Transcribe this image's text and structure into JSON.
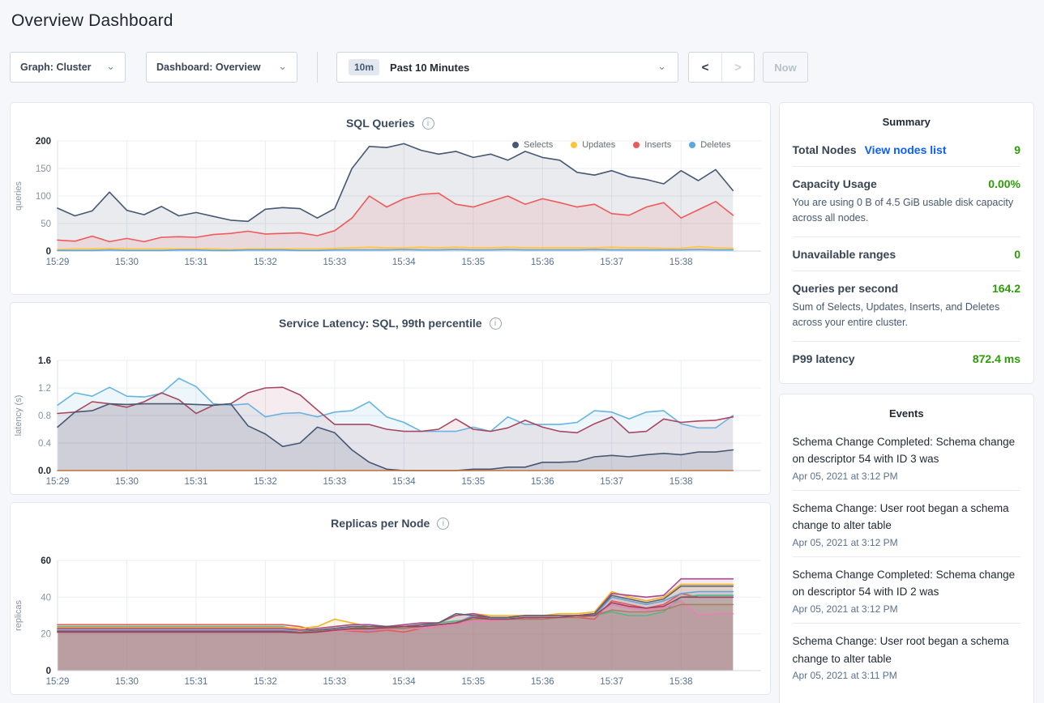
{
  "page": {
    "title": "Overview Dashboard"
  },
  "toolbar": {
    "graph_dropdown": "Graph: Cluster",
    "dashboard_dropdown": "Dashboard: Overview",
    "range_badge": "10m",
    "range_label": "Past 10 Minutes",
    "prev_label": "<",
    "next_label": ">",
    "now_label": "Now"
  },
  "colors": {
    "accent_green": "#2d9c07",
    "link_blue": "#0b5dff",
    "page_background": "#f5f7fa"
  },
  "summary": {
    "title": "Summary",
    "rows": [
      {
        "label": "Total Nodes",
        "link": "View nodes list",
        "value": "9",
        "desc": ""
      },
      {
        "label": "Capacity Usage",
        "link": "",
        "value": "0.00%",
        "desc": "You are using 0 B of 4.5 GiB usable disk capacity across all nodes."
      },
      {
        "label": "Unavailable ranges",
        "link": "",
        "value": "0",
        "desc": ""
      },
      {
        "label": "Queries per second",
        "link": "",
        "value": "164.2",
        "desc": "Sum of Selects, Updates, Inserts, and Deletes across your entire cluster."
      },
      {
        "label": "P99 latency",
        "link": "",
        "value": "872.4 ms",
        "desc": ""
      }
    ]
  },
  "events": {
    "title": "Events",
    "items": [
      {
        "message": "Schema Change Completed: Schema change on descriptor 54 with ID 3 was",
        "timestamp": "Apr 05, 2021 at 3:12 PM"
      },
      {
        "message": "Schema Change: User root began a schema change to alter table",
        "timestamp": "Apr 05, 2021 at 3:12 PM"
      },
      {
        "message": "Schema Change Completed: Schema change on descriptor 54 with ID 2 was",
        "timestamp": "Apr 05, 2021 at 3:12 PM"
      },
      {
        "message": "Schema Change: User root began a schema change to alter table",
        "timestamp": "Apr 05, 2021 at 3:11 PM"
      }
    ]
  },
  "chart_data": [
    {
      "type": "area",
      "title": "SQL Queries",
      "ylabel": "queries",
      "ylim": [
        0,
        200
      ],
      "yticks": [
        0,
        50,
        100,
        150,
        200
      ],
      "ytick_labels": [
        "0",
        "50",
        "100",
        "150",
        "200"
      ],
      "x_labels": [
        "15:29",
        "15:30",
        "15:31",
        "15:32",
        "15:33",
        "15:34",
        "15:35",
        "15:36",
        "15:37",
        "15:38"
      ],
      "legend_position": "top-right",
      "grid": true,
      "series": [
        {
          "name": "Selects",
          "color": "#475872",
          "fill_opacity": 0.12,
          "values": [
            78,
            64,
            73,
            107,
            74,
            66,
            81,
            64,
            70,
            63,
            56,
            54,
            76,
            79,
            77,
            60,
            77,
            150,
            190,
            188,
            195,
            183,
            176,
            181,
            170,
            176,
            165,
            181,
            170,
            165,
            143,
            138,
            146,
            135,
            130,
            122,
            146,
            128,
            148,
            110
          ]
        },
        {
          "name": "Updates",
          "color": "#ffc53d",
          "fill_opacity": 0.18,
          "values": [
            3,
            4,
            4,
            5,
            4,
            4,
            4,
            4,
            4,
            4,
            3,
            4,
            4,
            4,
            4,
            4,
            5,
            6,
            7,
            6,
            6,
            7,
            6,
            7,
            6,
            6,
            7,
            6,
            6,
            6,
            6,
            6,
            7,
            6,
            6,
            5,
            5,
            8,
            6,
            5
          ]
        },
        {
          "name": "Inserts",
          "color": "#ee5a5a",
          "fill_opacity": 0.12,
          "values": [
            20,
            18,
            27,
            17,
            23,
            17,
            25,
            26,
            25,
            30,
            32,
            36,
            31,
            32,
            33,
            28,
            37,
            60,
            100,
            80,
            95,
            103,
            105,
            85,
            80,
            90,
            100,
            85,
            95,
            88,
            80,
            85,
            68,
            65,
            80,
            88,
            60,
            75,
            90,
            65
          ]
        },
        {
          "name": "Deletes",
          "color": "#5ba8df",
          "fill_opacity": 0.12,
          "values": [
            1,
            1,
            1,
            2,
            1,
            1,
            1,
            2,
            2,
            1,
            1,
            2,
            2,
            2,
            1,
            1,
            2,
            2,
            2,
            2,
            3,
            2,
            2,
            3,
            2,
            2,
            3,
            2,
            2,
            2,
            2,
            3,
            2,
            2,
            2,
            2,
            2,
            3,
            2,
            2
          ]
        }
      ]
    },
    {
      "type": "area",
      "title": "Service Latency: SQL, 99th percentile",
      "ylabel": "latency (s)",
      "ylim": [
        0,
        1.6
      ],
      "yticks": [
        0,
        0.4,
        0.8,
        1.2,
        1.6
      ],
      "ytick_labels": [
        "0.0",
        "0.4",
        "0.8",
        "1.2",
        "1.6"
      ],
      "x_labels": [
        "15:29",
        "15:30",
        "15:31",
        "15:32",
        "15:33",
        "15:34",
        "15:35",
        "15:36",
        "15:37",
        "15:38"
      ],
      "legend_position": "none",
      "grid": true,
      "series": [
        {
          "name": "",
          "color": "#68b4e0",
          "fill_opacity": 0.12,
          "values": [
            0.95,
            1.13,
            1.08,
            1.21,
            1.08,
            1.07,
            1.12,
            1.34,
            1.22,
            0.97,
            0.95,
            0.97,
            0.78,
            0.83,
            0.84,
            0.78,
            0.85,
            0.87,
            1.0,
            0.78,
            0.7,
            0.57,
            0.57,
            0.57,
            0.63,
            0.57,
            0.78,
            0.67,
            0.67,
            0.67,
            0.7,
            0.87,
            0.85,
            0.75,
            0.85,
            0.87,
            0.68,
            0.62,
            0.62,
            0.8
          ]
        },
        {
          "name": "",
          "color": "#a8475f",
          "fill_opacity": 0.1,
          "values": [
            0.83,
            0.85,
            1.0,
            0.97,
            0.92,
            1.0,
            1.13,
            1.03,
            0.83,
            0.95,
            0.97,
            1.13,
            1.2,
            1.21,
            1.1,
            0.88,
            0.67,
            0.67,
            0.67,
            0.6,
            0.57,
            0.57,
            0.6,
            0.75,
            0.6,
            0.57,
            0.62,
            0.73,
            0.63,
            0.57,
            0.55,
            0.68,
            0.78,
            0.55,
            0.57,
            0.75,
            0.7,
            0.72,
            0.73,
            0.78
          ]
        },
        {
          "name": "",
          "color": "#475872",
          "fill_opacity": 0.14,
          "values": [
            0.63,
            0.85,
            0.87,
            0.97,
            0.96,
            0.97,
            0.97,
            0.97,
            0.96,
            0.95,
            0.97,
            0.65,
            0.53,
            0.35,
            0.4,
            0.63,
            0.55,
            0.3,
            0.12,
            0.02,
            0.0,
            0.0,
            0.0,
            0.0,
            0.02,
            0.02,
            0.05,
            0.05,
            0.12,
            0.12,
            0.13,
            0.2,
            0.22,
            0.2,
            0.23,
            0.25,
            0.23,
            0.27,
            0.27,
            0.3
          ]
        },
        {
          "name": "",
          "color": "#c0703c",
          "fill_opacity": 0,
          "values": [
            0,
            0,
            0,
            0,
            0,
            0,
            0,
            0,
            0,
            0,
            0,
            0,
            0,
            0,
            0,
            0,
            0,
            0,
            0,
            0,
            0,
            0,
            0,
            0,
            0,
            0,
            0,
            0,
            0,
            0,
            0,
            0,
            0,
            0,
            0,
            0,
            0,
            0,
            0,
            0
          ]
        }
      ]
    },
    {
      "type": "area",
      "title": "Replicas per Node",
      "ylabel": "replicas",
      "ylim": [
        0,
        60
      ],
      "yticks": [
        0,
        20,
        40,
        60
      ],
      "ytick_labels": [
        "0",
        "20",
        "40",
        "60"
      ],
      "x_labels": [
        "15:29",
        "15:30",
        "15:31",
        "15:32",
        "15:33",
        "15:34",
        "15:35",
        "15:36",
        "15:37",
        "15:38"
      ],
      "legend_position": "none",
      "grid": true,
      "series": [
        {
          "name": "",
          "color": "#e25b5b",
          "fill_opacity": 0.12,
          "values": [
            25,
            25,
            25,
            25,
            25,
            25,
            25,
            25,
            25,
            25,
            25,
            25,
            25,
            25,
            24,
            21.5,
            22,
            21.5,
            21,
            22,
            21,
            23,
            24,
            25,
            30,
            28,
            28,
            29,
            28,
            29,
            29,
            28,
            38,
            36,
            34,
            36,
            42,
            40,
            40,
            40
          ]
        },
        {
          "name": "",
          "color": "#4fb98a",
          "fill_opacity": 0.12,
          "values": [
            24,
            24,
            24,
            24,
            24,
            24,
            24,
            24,
            24,
            24,
            24,
            24,
            24,
            24,
            22,
            22,
            23,
            24,
            23,
            23,
            24,
            24,
            26,
            27,
            28,
            28,
            29,
            28,
            28,
            29,
            29,
            30,
            32,
            30,
            30,
            32,
            40,
            41,
            41,
            41
          ]
        },
        {
          "name": "",
          "color": "#f5b222",
          "fill_opacity": 0.12,
          "values": [
            23.5,
            23.5,
            23.5,
            23.5,
            23.5,
            23.5,
            23.5,
            23.5,
            23.5,
            23.5,
            23.5,
            23.5,
            23.5,
            23.5,
            23,
            24,
            28,
            26,
            24,
            24,
            24,
            25,
            26,
            30,
            31,
            30,
            30,
            30,
            30,
            31,
            31,
            32,
            43,
            40,
            38,
            40,
            47,
            47,
            47,
            47
          ]
        },
        {
          "name": "",
          "color": "#a84a8f",
          "fill_opacity": 0.12,
          "values": [
            23,
            23,
            23,
            23,
            23,
            23,
            23,
            23,
            23,
            23,
            23,
            23,
            23,
            23,
            22,
            23,
            24,
            25,
            25,
            24,
            25,
            26,
            26,
            30,
            31,
            29,
            29,
            30,
            30,
            30,
            30,
            31,
            42,
            41,
            40,
            41,
            50,
            50,
            50,
            50
          ]
        },
        {
          "name": "",
          "color": "#6aa0d8",
          "fill_opacity": 0.12,
          "values": [
            22.5,
            22.5,
            22.5,
            22.5,
            22.5,
            22.5,
            22.5,
            22.5,
            22.5,
            22.5,
            22.5,
            22.5,
            22.5,
            22.5,
            21,
            21,
            22,
            23,
            21.5,
            23,
            23,
            24,
            25,
            26,
            30,
            29,
            28,
            29,
            29,
            29,
            30,
            30,
            40,
            38,
            36,
            38,
            42,
            43,
            43,
            43
          ]
        },
        {
          "name": "",
          "color": "#e881b4",
          "fill_opacity": 0.12,
          "values": [
            22,
            22,
            22,
            22,
            22,
            22,
            22,
            22,
            22,
            22,
            22,
            22,
            22,
            22,
            20.5,
            21,
            21.5,
            22,
            22,
            22.5,
            23,
            23,
            24,
            25,
            27,
            27,
            28,
            28,
            28,
            29,
            29,
            30,
            36,
            34,
            33,
            34,
            38,
            30,
            31,
            31
          ]
        },
        {
          "name": "",
          "color": "#5c646e",
          "fill_opacity": 0.12,
          "values": [
            21.5,
            21.5,
            21.5,
            21.5,
            21.5,
            21.5,
            21.5,
            21.5,
            21.5,
            21.5,
            21.5,
            21.5,
            21.5,
            21.5,
            21,
            22,
            23,
            24,
            24,
            24,
            24,
            25,
            26,
            31,
            30,
            29,
            29,
            30,
            30,
            30,
            30,
            31,
            41,
            39,
            37,
            39,
            46,
            46,
            46,
            46
          ]
        },
        {
          "name": "",
          "color": "#a97f63",
          "fill_opacity": 0.12,
          "values": [
            21,
            21,
            21,
            21,
            21,
            21,
            21,
            21,
            21,
            21,
            21,
            21,
            21,
            21,
            21,
            21.5,
            22,
            22.5,
            22.5,
            23,
            23,
            24,
            25,
            26,
            28,
            28,
            28,
            28,
            28,
            29,
            29,
            30,
            33,
            32,
            32,
            33,
            36,
            36,
            36,
            36
          ]
        },
        {
          "name": "",
          "color": "#9c4260",
          "fill_opacity": 0.12,
          "values": [
            21,
            21,
            21,
            21,
            21,
            21,
            21,
            21,
            21,
            21,
            21,
            21,
            21,
            21,
            20.5,
            21,
            22,
            23,
            23,
            23.5,
            24,
            24,
            25,
            26,
            29,
            28,
            28,
            29,
            29,
            29,
            30,
            30,
            37,
            35,
            34,
            35,
            40,
            40,
            40,
            40
          ]
        }
      ]
    }
  ]
}
